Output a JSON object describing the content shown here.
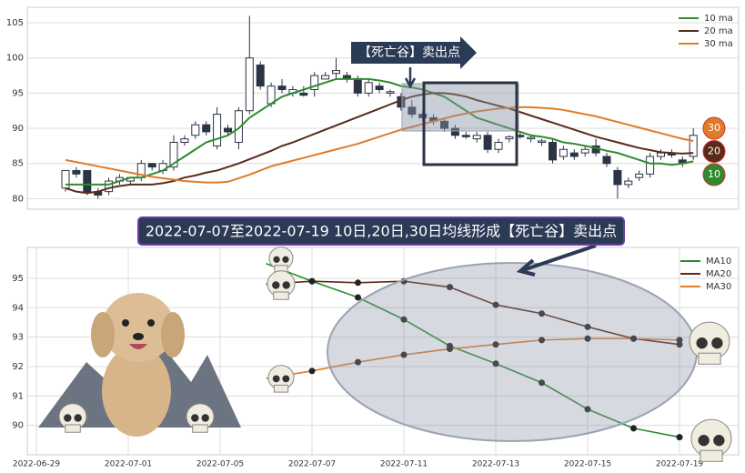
{
  "chart_data": [
    {
      "type": "candlestick",
      "annotation": "【死亡谷】卖出点",
      "ylim": [
        78.5,
        107.2
      ],
      "yticks": [
        80,
        85,
        90,
        95,
        100,
        105
      ],
      "grid": true,
      "up_color": "#ffffff",
      "down_color": "#2b3445",
      "legend_position": "upper right",
      "open": [
        81.5,
        84,
        84,
        81,
        81,
        82.5,
        82.5,
        83,
        85,
        84,
        84.5,
        88,
        89,
        90.5,
        87.5,
        90,
        88,
        92.5,
        99,
        93.5,
        96,
        95,
        95,
        95.5,
        97,
        97.8,
        97.5,
        97,
        95,
        96,
        95,
        94.5,
        93,
        92,
        91.5,
        91,
        90,
        89,
        88.5,
        89,
        87,
        88.5,
        89,
        88.5,
        88,
        88,
        86,
        86.5,
        86.5,
        87.5,
        86,
        84,
        82,
        83,
        83.5,
        86,
        86.5,
        85.5,
        86
      ],
      "high": [
        84,
        84.5,
        84,
        81.5,
        83,
        83.5,
        83,
        85.5,
        85,
        85.5,
        89,
        89,
        91,
        91,
        93,
        90.5,
        93,
        106,
        99.5,
        96.5,
        97,
        96,
        96,
        98,
        98,
        100,
        98,
        97.5,
        97,
        96.5,
        95.5,
        95,
        94,
        92.5,
        92,
        91.5,
        90.5,
        89.5,
        89.5,
        89.5,
        88.5,
        89,
        89.5,
        89,
        88.5,
        88.5,
        87.5,
        87,
        87.5,
        88.5,
        86.5,
        84.5,
        83,
        84,
        86.5,
        87,
        87,
        86,
        90
      ],
      "low": [
        81,
        83,
        80.5,
        80,
        80.5,
        82,
        82,
        82.5,
        84,
        83.5,
        84,
        87.5,
        88.5,
        89,
        87,
        89,
        87,
        92,
        95.5,
        93,
        95,
        94.5,
        94.5,
        94.5,
        97,
        97,
        96.5,
        94.5,
        94.5,
        95,
        94.5,
        92.5,
        91.5,
        91,
        90.5,
        89.5,
        88.5,
        88.5,
        88,
        86.5,
        86.5,
        88,
        88.5,
        88,
        87.5,
        85,
        85.5,
        85.5,
        86,
        86,
        84.5,
        80,
        81.5,
        82.5,
        83,
        85.5,
        85.8,
        84.5,
        85.5
      ],
      "close": [
        84,
        83.5,
        81,
        80.5,
        82.5,
        83,
        83,
        85,
        84.5,
        85,
        88,
        88.5,
        90.5,
        89.5,
        92,
        89.5,
        92.5,
        100,
        96,
        96,
        95.5,
        95.5,
        94.7,
        97.5,
        97.5,
        98.2,
        97,
        95,
        96.5,
        95.5,
        95.2,
        93,
        92,
        91.5,
        91,
        90,
        89,
        88.8,
        89,
        87,
        88,
        88.8,
        88.8,
        88.7,
        88.2,
        85.5,
        87,
        86,
        87,
        86.5,
        85,
        82,
        82.5,
        83.5,
        86,
        86.5,
        86.2,
        85,
        89
      ],
      "series": [
        {
          "name": "10 ma",
          "color": "#2e8b2e",
          "end_label": "10",
          "values": [
            82,
            82,
            82,
            82,
            82,
            82.5,
            83,
            83,
            83.5,
            84,
            85,
            86,
            87,
            88,
            88.5,
            89,
            90,
            91.5,
            92.5,
            93.5,
            94.5,
            95,
            95.5,
            96,
            96.5,
            97,
            97,
            97,
            97,
            96.8,
            96.5,
            96,
            95.8,
            95.5,
            95,
            94.5,
            93.5,
            92.5,
            91.5,
            91,
            90.5,
            90,
            89.5,
            89,
            88.8,
            88.5,
            88,
            87.8,
            87.5,
            87.2,
            86.8,
            86.5,
            86,
            85.5,
            85,
            85,
            84.8,
            85,
            85.3
          ]
        },
        {
          "name": "20 ma",
          "color": "#5a2a1a",
          "end_label": "20",
          "values": [
            81.5,
            81,
            80.8,
            81,
            81.5,
            81.8,
            82,
            82,
            82,
            82.2,
            82.5,
            83,
            83.3,
            83.7,
            84,
            84.5,
            85,
            85.6,
            86.2,
            86.8,
            87.5,
            88,
            88.6,
            89.2,
            89.8,
            90.4,
            91,
            91.6,
            92.2,
            92.8,
            93.4,
            94,
            94.5,
            94.8,
            95,
            95,
            94.8,
            94.5,
            94,
            93.6,
            93.2,
            92.8,
            92.3,
            91.8,
            91.3,
            90.8,
            90.3,
            89.8,
            89.3,
            88.8,
            88.4,
            88,
            87.6,
            87.2,
            86.9,
            86.6,
            86.5,
            86.4,
            86.5
          ]
        },
        {
          "name": "30 ma",
          "color": "#e07b28",
          "end_label": "30",
          "values": [
            85.5,
            85.2,
            84.9,
            84.6,
            84.3,
            84,
            83.7,
            83.4,
            83.1,
            82.9,
            82.7,
            82.5,
            82.4,
            82.3,
            82.3,
            82.4,
            82.9,
            83.4,
            84,
            84.6,
            85,
            85.4,
            85.8,
            86.2,
            86.6,
            87,
            87.4,
            87.8,
            88.3,
            88.8,
            89.3,
            89.8,
            90.2,
            90.6,
            91,
            91.4,
            91.8,
            92.1,
            92.4,
            92.6,
            92.8,
            92.9,
            93,
            93,
            92.9,
            92.8,
            92.6,
            92.3,
            92,
            91.7,
            91.3,
            90.9,
            90.5,
            90.1,
            89.7,
            89.3,
            88.9,
            88.5,
            88.2
          ]
        }
      ]
    },
    {
      "type": "line",
      "title": "2022-07-07至2022-07-19 10日,20日,30日均线形成【死亡谷】卖出点",
      "x": [
        "2022-06-29",
        "2022-06-30",
        "2022-07-01",
        "2022-07-04",
        "2022-07-05",
        "2022-07-06",
        "2022-07-07",
        "2022-07-08",
        "2022-07-11",
        "2022-07-12",
        "2022-07-13",
        "2022-07-14",
        "2022-07-15",
        "2022-07-18",
        "2022-07-19"
      ],
      "xticks": [
        "2022-06-29",
        "2022-07-01",
        "2022-07-05",
        "2022-07-07",
        "2022-07-11",
        "2022-07-13",
        "2022-07-15",
        "2022-07-19"
      ],
      "ylim": [
        89.0,
        96.05
      ],
      "yticks": [
        90,
        91,
        92,
        93,
        94,
        95
      ],
      "grid": true,
      "legend_position": "upper right",
      "series": [
        {
          "name": "MA10",
          "color": "#2e8b2e",
          "values": [
            null,
            null,
            null,
            null,
            null,
            95.5,
            94.9,
            94.35,
            93.6,
            92.7,
            92.1,
            91.45,
            90.55,
            89.9,
            89.6
          ]
        },
        {
          "name": "MA20",
          "color": "#5a2a1a",
          "values": [
            null,
            null,
            null,
            null,
            null,
            94.8,
            94.9,
            94.85,
            94.9,
            94.7,
            94.1,
            93.8,
            93.35,
            92.95,
            92.75
          ]
        },
        {
          "name": "MA30",
          "color": "#e07b28",
          "values": [
            null,
            null,
            null,
            null,
            null,
            91.6,
            91.85,
            92.15,
            92.4,
            92.6,
            92.75,
            92.9,
            92.95,
            92.95,
            92.9
          ]
        }
      ]
    }
  ]
}
